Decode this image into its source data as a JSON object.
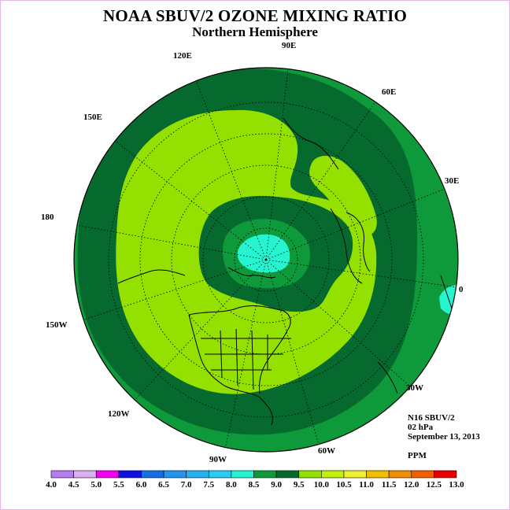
{
  "title": "NOAA SBUV/2 OZONE MIXING RATIO",
  "subtitle": "Northern Hemisphere",
  "longitude_labels": [
    "120E",
    "90E",
    "60E",
    "150E",
    "30E",
    "180",
    "0",
    "150W",
    "30W",
    "120W",
    "60W",
    "90W"
  ],
  "info": {
    "instrument": "N16 SBUV/2",
    "pressure": "02 hPa",
    "date": "September 13, 2013",
    "units": "PPM"
  },
  "colorbar": {
    "labels": [
      "4.0",
      "4.5",
      "5.0",
      "5.5",
      "6.0",
      "6.5",
      "7.0",
      "7.5",
      "8.0",
      "8.5",
      "9.0",
      "9.5",
      "10.0",
      "10.5",
      "11.0",
      "11.5",
      "12.0",
      "12.5",
      "13.0"
    ],
    "colors": [
      "#b67cf0",
      "#dcb0ee",
      "#f000f0",
      "#1010e0",
      "#1870e0",
      "#2494ee",
      "#24b0f0",
      "#28ccf0",
      "#26f4d0",
      "#0e9a3a",
      "#066a2e",
      "#94e000",
      "#c2ee10",
      "#f0f030",
      "#f0c000",
      "#f09000",
      "#f06000",
      "#e80000",
      "#8c5030"
    ]
  },
  "map_colors": {
    "level_8_0": "#26f4d0",
    "level_8_5": "#0e9a3a",
    "level_9_0": "#066a2e",
    "level_9_5": "#94e000"
  }
}
